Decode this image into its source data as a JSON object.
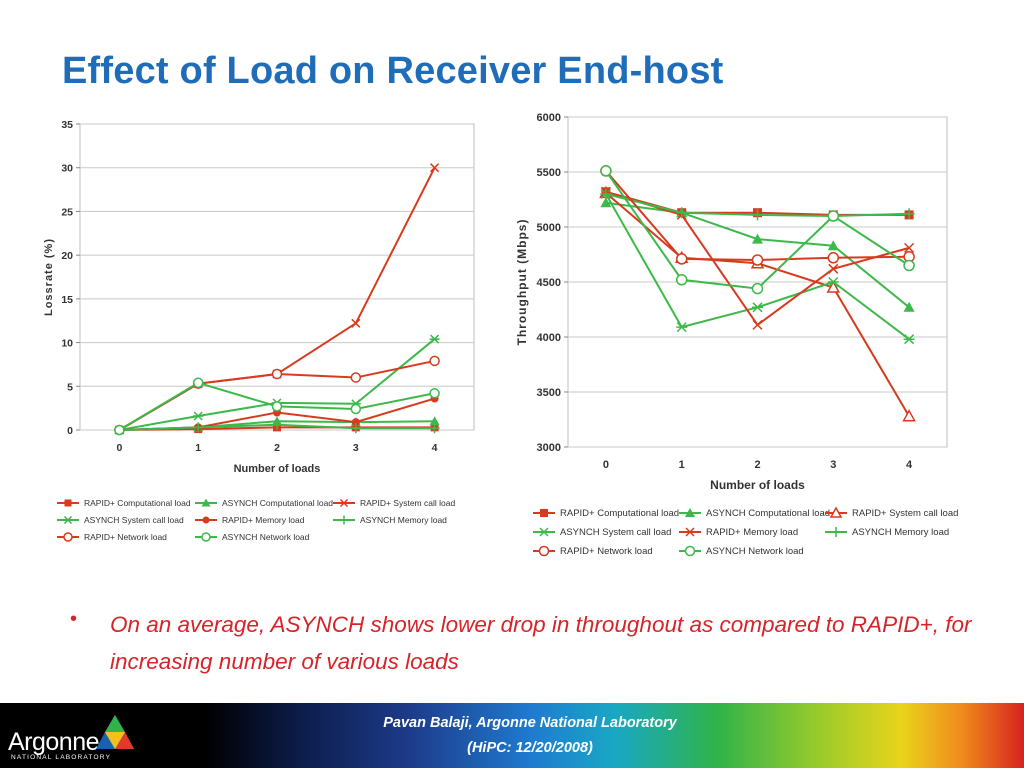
{
  "slide": {
    "title": "Effect of Load on Receiver End-host",
    "bullet": "On an average, ASYNCH  shows lower drop in throughout as compared to RAPID+, for increasing number of various loads"
  },
  "footer": {
    "line1": "Pavan Balaji, Argonne National Laboratory",
    "line2": "(HiPC: 12/20/2008)",
    "logo_text": "Argonne",
    "logo_subtext": "NATIONAL LABORATORY"
  },
  "colors": {
    "title": "#1f6db8",
    "rapid": "#d83a1e",
    "asynch": "#3cb94a",
    "bullet": "#d8232a"
  },
  "chart_data": [
    {
      "type": "line",
      "xlabel": "Number of loads",
      "ylabel": "Lossrate (%)",
      "x": [
        0,
        1,
        2,
        3,
        4
      ],
      "ylim": [
        0,
        35
      ],
      "yticks": [
        0,
        5,
        10,
        15,
        20,
        25,
        30,
        35
      ],
      "grid": true,
      "legend_position": "bottom",
      "series": [
        {
          "name": "RAPID+ Computational load",
          "color": "#d83a1e",
          "marker": "square",
          "values": [
            0,
            0.1,
            0.3,
            0.3,
            0.3
          ]
        },
        {
          "name": "ASYNCH Computational load",
          "color": "#3cb94a",
          "marker": "triangle",
          "values": [
            0,
            0.3,
            1.0,
            0.9,
            1.0
          ]
        },
        {
          "name": "RAPID+ System call load",
          "color": "#d83a1e",
          "marker": "x",
          "values": [
            0,
            5.3,
            6.4,
            12.2,
            30
          ]
        },
        {
          "name": "ASYNCH System call load",
          "color": "#3cb94a",
          "marker": "star",
          "values": [
            0,
            1.6,
            3.1,
            3.0,
            10.4
          ]
        },
        {
          "name": "RAPID+ Memory load",
          "color": "#d83a1e",
          "marker": "dot",
          "values": [
            0,
            0.3,
            2.0,
            0.9,
            3.6
          ]
        },
        {
          "name": "ASYNCH Memory load",
          "color": "#3cb94a",
          "marker": "plus",
          "values": [
            0,
            0.3,
            0.6,
            0.2,
            0.2
          ]
        },
        {
          "name": "RAPID+ Network load",
          "color": "#d83a1e",
          "marker": "circle",
          "values": [
            0,
            5.3,
            6.4,
            6.0,
            7.9
          ]
        },
        {
          "name": "ASYNCH Network load",
          "color": "#3cb94a",
          "marker": "circle",
          "values": [
            0,
            5.4,
            2.7,
            2.4,
            4.2
          ]
        }
      ]
    },
    {
      "type": "line",
      "xlabel": "Number of loads",
      "ylabel": "Throughput (Mbps)",
      "x": [
        0,
        1,
        2,
        3,
        4
      ],
      "ylim": [
        3000,
        6000
      ],
      "yticks": [
        3000,
        3500,
        4000,
        4500,
        5000,
        5500,
        6000
      ],
      "grid": true,
      "legend_position": "bottom",
      "series": [
        {
          "name": "RAPID+ Computational load",
          "color": "#d83a1e",
          "marker": "square",
          "values": [
            5320,
            5130,
            5130,
            5110,
            5110
          ]
        },
        {
          "name": "ASYNCH Computational load",
          "color": "#3cb94a",
          "marker": "triangle",
          "values": [
            5220,
            5130,
            4890,
            4830,
            4270
          ]
        },
        {
          "name": "RAPID+ System call load",
          "color": "#d83a1e",
          "marker": "triangle-open",
          "values": [
            5310,
            4720,
            4670,
            4450,
            3280
          ]
        },
        {
          "name": "ASYNCH System call load",
          "color": "#3cb94a",
          "marker": "star",
          "values": [
            5300,
            4090,
            4270,
            4500,
            3980
          ]
        },
        {
          "name": "RAPID+ Memory load",
          "color": "#d83a1e",
          "marker": "x",
          "values": [
            5320,
            5110,
            4110,
            4620,
            4810
          ]
        },
        {
          "name": "ASYNCH Memory load",
          "color": "#3cb94a",
          "marker": "plus",
          "values": [
            5300,
            5130,
            5110,
            5100,
            5120
          ]
        },
        {
          "name": "RAPID+ Network load",
          "color": "#d83a1e",
          "marker": "circle",
          "values": [
            5510,
            4710,
            4700,
            4720,
            4730
          ]
        },
        {
          "name": "ASYNCH Network load",
          "color": "#3cb94a",
          "marker": "circle",
          "values": [
            5510,
            4520,
            4440,
            5100,
            4650
          ]
        }
      ]
    }
  ]
}
